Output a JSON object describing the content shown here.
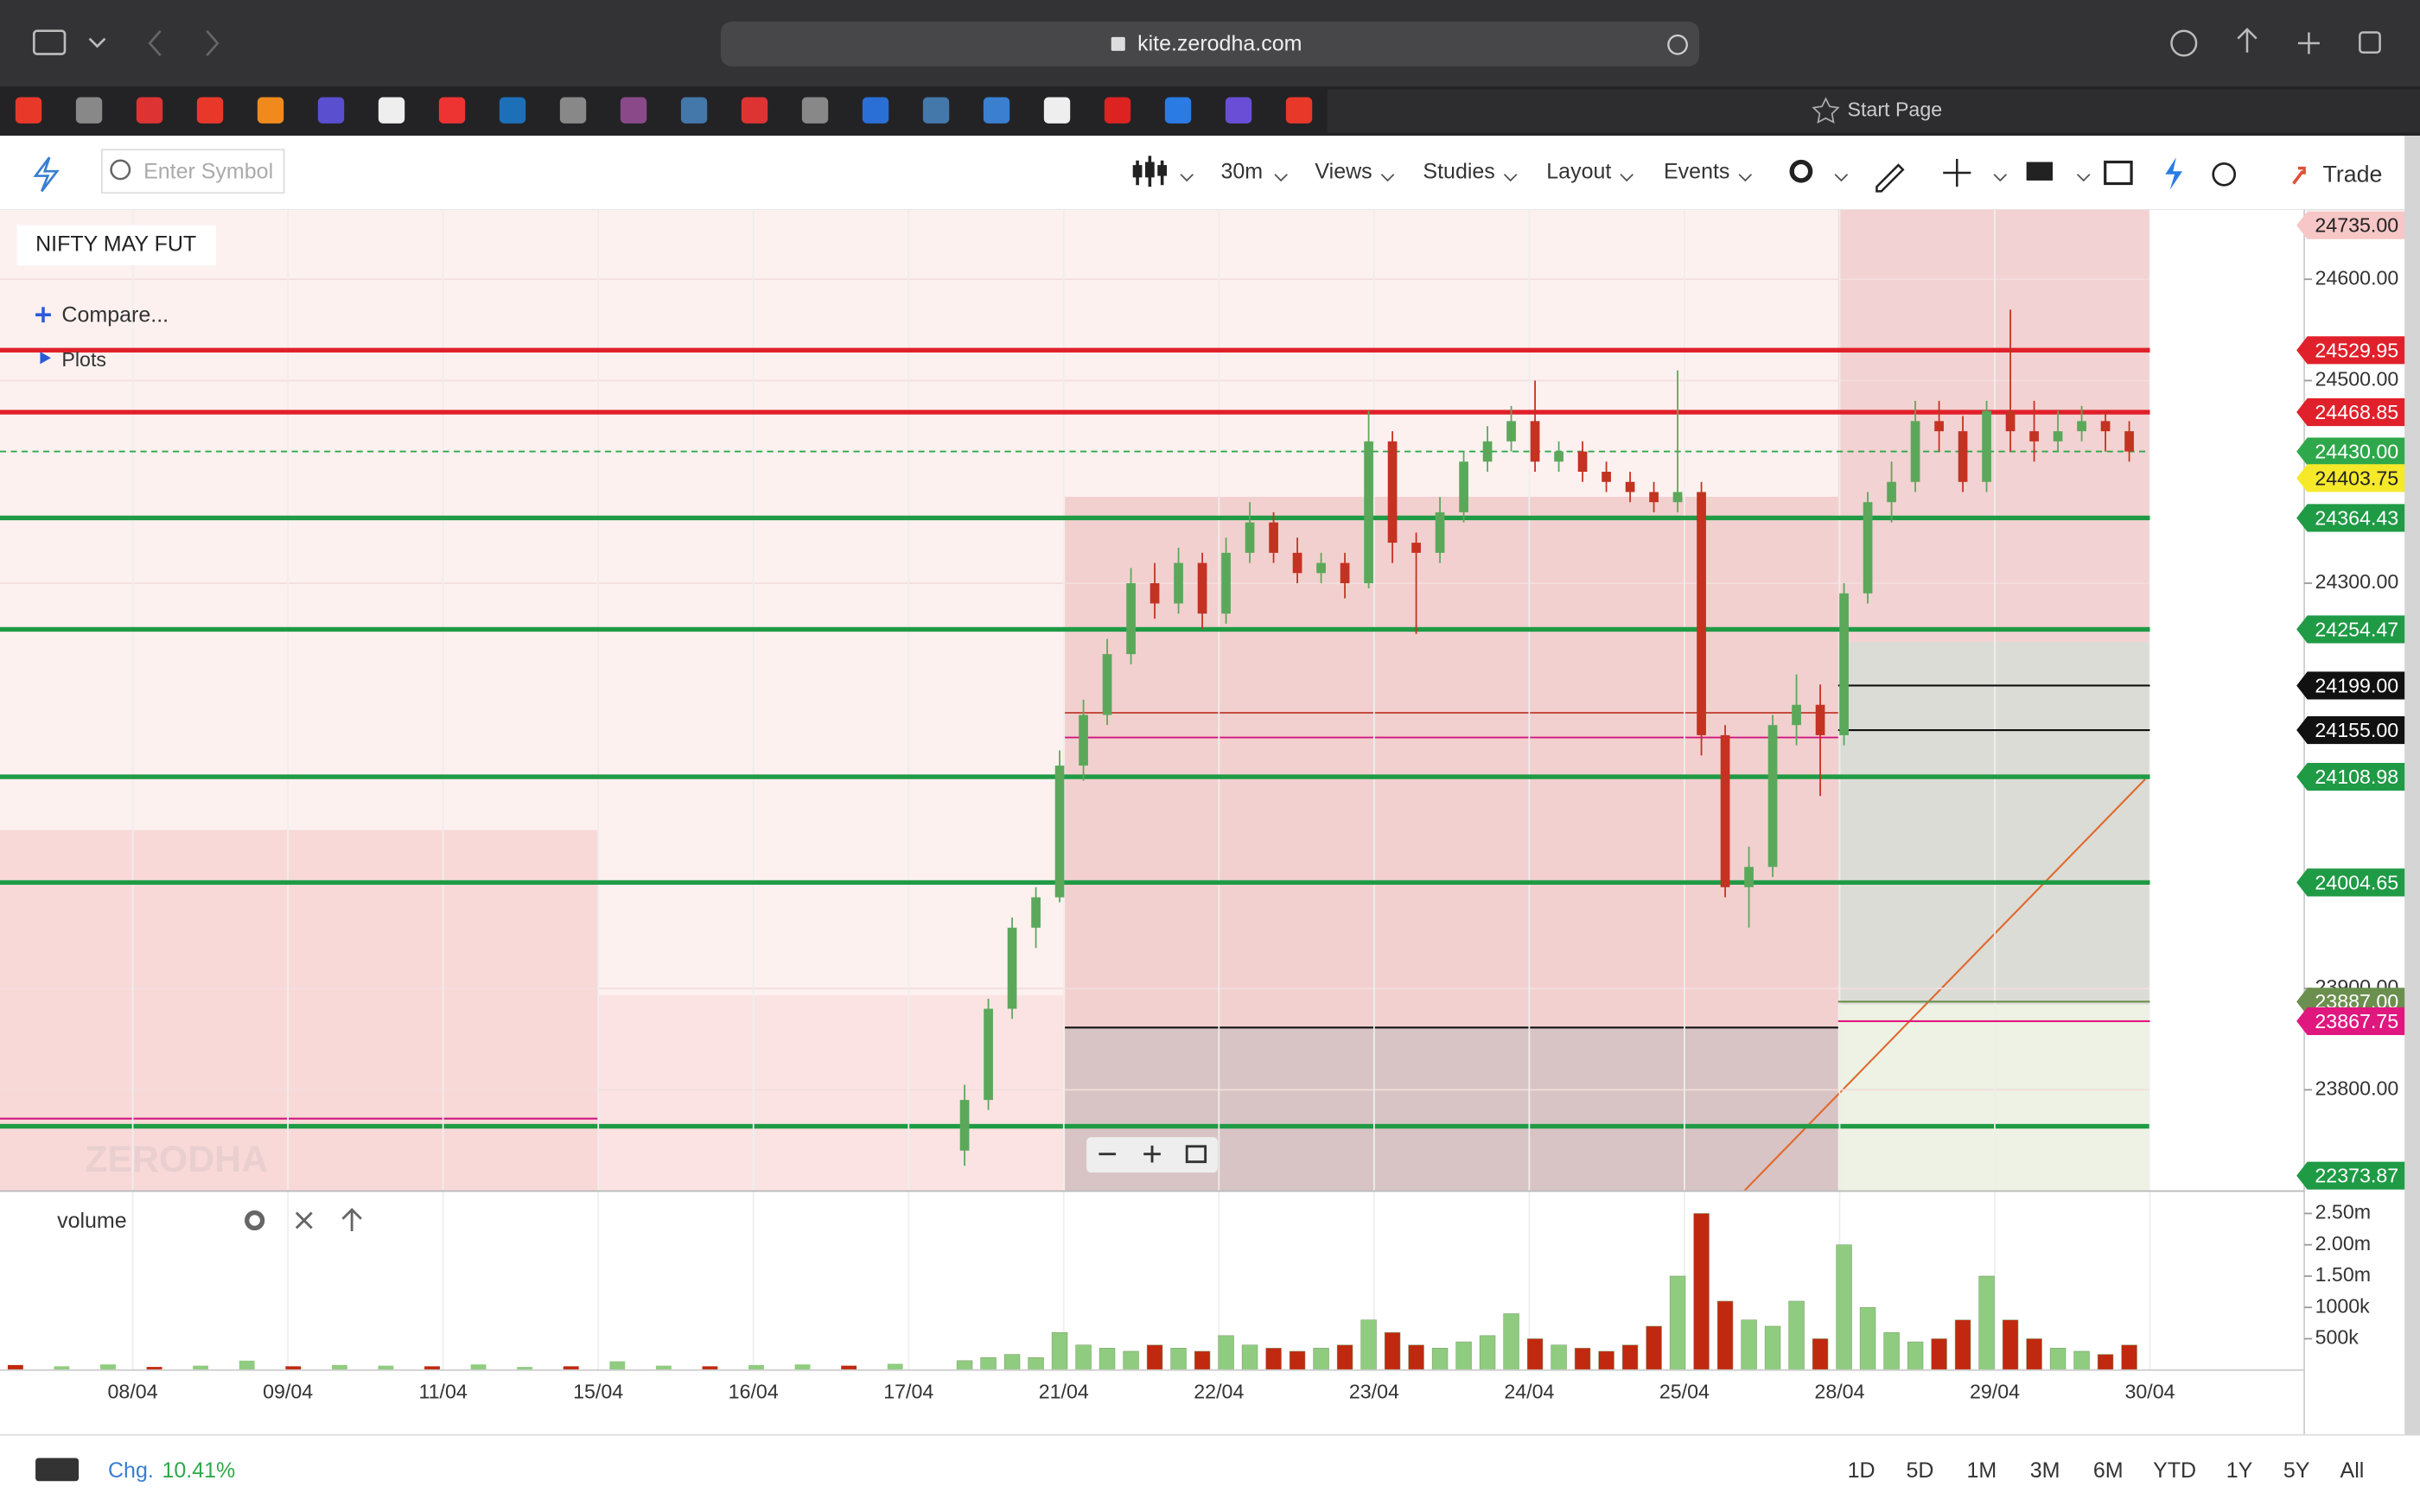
{
  "browser": {
    "url": "kite.zerodha.com",
    "start_page": "Start Page"
  },
  "toolbar": {
    "search_placeholder": "Enter Symbol",
    "interval": "30m",
    "menus": [
      "Views",
      "Studies",
      "Layout",
      "Events"
    ],
    "trade": "Trade"
  },
  "chart": {
    "instrument": "NIFTY MAY FUT",
    "compare": "Compare...",
    "plots": "Plots",
    "watermark": "ZERODHA",
    "up_color": "#5ba85b",
    "down_color": "#c43222",
    "price_ticks": [
      {
        "value": 24600,
        "label": "24600.00"
      },
      {
        "value": 24500,
        "label": "24500.00"
      },
      {
        "value": 24300,
        "label": "24300.00"
      },
      {
        "value": 23900,
        "label": "23900.00"
      },
      {
        "value": 23800,
        "label": "23800.00"
      }
    ],
    "levels": [
      {
        "value": 24735,
        "label": "24735.00",
        "color": "#f7c6c6",
        "text_color": "#222"
      },
      {
        "value": 24529.95,
        "label": "24529.95",
        "color": "#e0202a",
        "text_color": "#fff",
        "line": "full"
      },
      {
        "value": 24468.85,
        "label": "24468.85",
        "color": "#e0202a",
        "text_color": "#fff",
        "line": "full"
      },
      {
        "value": 24430,
        "label": "24430.00",
        "color": "#2ea84a",
        "text_color": "#fff",
        "line": "dashed"
      },
      {
        "value": 24403.75,
        "label": "24403.75",
        "color": "#f5e92a",
        "text_color": "#222"
      },
      {
        "value": 24364.43,
        "label": "24364.43",
        "color": "#1f9a45",
        "text_color": "#fff",
        "line": "full"
      },
      {
        "value": 24254.47,
        "label": "24254.47",
        "color": "#1f9a45",
        "text_color": "#fff",
        "line": "full"
      },
      {
        "value": 24199,
        "label": "24199.00",
        "color": "#111",
        "text_color": "#fff",
        "line": "right"
      },
      {
        "value": 24155,
        "label": "24155.00",
        "color": "#111",
        "text_color": "#fff",
        "line": "right"
      },
      {
        "value": 24108.98,
        "label": "24108.98",
        "color": "#1f9a45",
        "text_color": "#fff",
        "line": "full"
      },
      {
        "value": 24004.65,
        "label": "24004.65",
        "color": "#1f9a45",
        "text_color": "#fff",
        "line": "full"
      },
      {
        "value": 23887,
        "label": "23887.00",
        "color": "#6b8f4e",
        "text_color": "#fff",
        "line": "right"
      },
      {
        "value": 23867.75,
        "label": "23867.75",
        "color": "#e0177f",
        "text_color": "#fff",
        "line": "right"
      },
      {
        "value": 22373.87,
        "label": "22373.87",
        "color": "#1f9a45",
        "text_color": "#fff"
      }
    ],
    "dates": [
      "08/04",
      "09/04",
      "11/04",
      "15/04",
      "16/04",
      "17/04",
      "21/04",
      "22/04",
      "23/04",
      "24/04",
      "25/04",
      "28/04",
      "29/04",
      "30/04"
    ],
    "candles": [
      [
        23740,
        23805,
        23725,
        23790
      ],
      [
        23790,
        23890,
        23780,
        23880
      ],
      [
        23880,
        23970,
        23870,
        23960
      ],
      [
        23960,
        24000,
        23940,
        23990
      ],
      [
        23990,
        24135,
        23985,
        24120
      ],
      [
        24120,
        24185,
        24105,
        24170
      ],
      [
        24170,
        24245,
        24160,
        24230
      ],
      [
        24230,
        24315,
        24220,
        24300
      ],
      [
        24300,
        24320,
        24265,
        24280
      ],
      [
        24280,
        24335,
        24270,
        24320
      ],
      [
        24320,
        24330,
        24255,
        24270
      ],
      [
        24270,
        24345,
        24260,
        24330
      ],
      [
        24330,
        24380,
        24320,
        24360
      ],
      [
        24360,
        24370,
        24320,
        24330
      ],
      [
        24330,
        24345,
        24300,
        24310
      ],
      [
        24310,
        24330,
        24300,
        24320
      ],
      [
        24320,
        24330,
        24285,
        24300
      ],
      [
        24300,
        24470,
        24295,
        24440
      ],
      [
        24440,
        24450,
        24320,
        24340
      ],
      [
        24340,
        24350,
        24250,
        24330
      ],
      [
        24330,
        24385,
        24320,
        24370
      ],
      [
        24370,
        24430,
        24360,
        24420
      ],
      [
        24420,
        24455,
        24410,
        24440
      ],
      [
        24440,
        24475,
        24430,
        24460
      ],
      [
        24460,
        24500,
        24410,
        24420
      ],
      [
        24420,
        24440,
        24410,
        24430
      ],
      [
        24430,
        24440,
        24400,
        24410
      ],
      [
        24410,
        24420,
        24390,
        24400
      ],
      [
        24400,
        24410,
        24380,
        24390
      ],
      [
        24390,
        24400,
        24370,
        24380
      ],
      [
        24380,
        24510,
        24370,
        24390
      ],
      [
        24390,
        24400,
        24130,
        24150
      ],
      [
        24150,
        24160,
        23990,
        24000
      ],
      [
        24000,
        24040,
        23960,
        24020
      ],
      [
        24020,
        24170,
        24010,
        24160
      ],
      [
        24160,
        24210,
        24140,
        24180
      ],
      [
        24180,
        24200,
        24090,
        24150
      ],
      [
        24150,
        24300,
        24140,
        24290
      ],
      [
        24290,
        24390,
        24280,
        24380
      ],
      [
        24380,
        24420,
        24360,
        24400
      ],
      [
        24400,
        24480,
        24390,
        24460
      ],
      [
        24460,
        24480,
        24430,
        24450
      ],
      [
        24450,
        24465,
        24390,
        24400
      ],
      [
        24400,
        24480,
        24390,
        24470
      ],
      [
        24470,
        24570,
        24430,
        24450
      ],
      [
        24450,
        24480,
        24420,
        24440
      ],
      [
        24440,
        24470,
        24430,
        24450
      ],
      [
        24450,
        24475,
        24440,
        24460
      ],
      [
        24460,
        24470,
        24430,
        24450
      ],
      [
        24450,
        24460,
        24420,
        24430
      ]
    ]
  },
  "volume": {
    "label": "volume",
    "up_color": "#8fcc7f",
    "down_color": "#c0290f",
    "ticks": [
      {
        "value": 2500000,
        "label": "2.50m"
      },
      {
        "value": 2000000,
        "label": "2.00m"
      },
      {
        "value": 1500000,
        "label": "1.50m"
      },
      {
        "value": 1000000,
        "label": "1000k"
      },
      {
        "value": 500000,
        "label": "500k"
      }
    ],
    "early": [
      80000,
      60000,
      90000,
      50000,
      70000,
      150000,
      60000,
      80000,
      70000,
      60000,
      90000,
      50000,
      60000,
      140000,
      70000,
      60000,
      80000,
      90000,
      70000,
      100000
    ],
    "values": [
      150000,
      200000,
      250000,
      200000,
      600000,
      400000,
      350000,
      300000,
      400000,
      350000,
      300000,
      550000,
      400000,
      350000,
      300000,
      350000,
      400000,
      800000,
      600000,
      400000,
      350000,
      450000,
      550000,
      900000,
      500000,
      400000,
      350000,
      300000,
      400000,
      700000,
      1500000,
      2500000,
      1100000,
      800000,
      700000,
      1100000,
      500000,
      2000000,
      1000000,
      600000,
      450000,
      500000,
      800000,
      1500000,
      800000,
      500000,
      350000,
      300000,
      250000,
      400000
    ]
  },
  "footer": {
    "change_label": "Chg.",
    "change": "10.41%",
    "ranges": [
      "1D",
      "5D",
      "1M",
      "3M",
      "6M",
      "YTD",
      "1Y",
      "5Y",
      "All"
    ]
  }
}
